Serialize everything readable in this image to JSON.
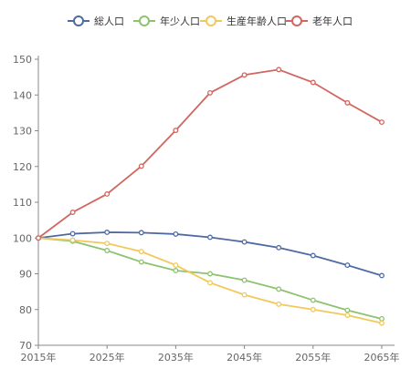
{
  "chart_data": {
    "type": "line",
    "title": "",
    "xlabel": "",
    "ylabel": "",
    "x": [
      2015,
      2020,
      2025,
      2030,
      2035,
      2040,
      2045,
      2050,
      2055,
      2060,
      2065
    ],
    "x_tick_labels": [
      "2015年",
      "2025年",
      "2035年",
      "2045年",
      "2055年",
      "2065年"
    ],
    "x_tick_values": [
      2015,
      2025,
      2035,
      2045,
      2055,
      2065
    ],
    "ylim": [
      70,
      150
    ],
    "y_ticks": [
      70,
      80,
      90,
      100,
      110,
      120,
      130,
      140,
      150
    ],
    "grid": false,
    "legend_position": "top",
    "series": [
      {
        "name": "総人口",
        "color": "#4e6aa3",
        "values": [
          100,
          101.2,
          101.6,
          101.5,
          101.1,
          100.2,
          98.9,
          97.3,
          95.1,
          92.4,
          89.5
        ]
      },
      {
        "name": "年少人口",
        "color": "#8cc36f",
        "values": [
          100,
          99.1,
          96.5,
          93.3,
          90.9,
          90.0,
          88.2,
          85.7,
          82.6,
          79.8,
          77.4
        ]
      },
      {
        "name": "生産年齢人口",
        "color": "#f1c85a",
        "values": [
          100,
          99.4,
          98.5,
          96.2,
          92.4,
          87.5,
          84.1,
          81.5,
          80.0,
          78.4,
          76.2
        ]
      },
      {
        "name": "老年人口",
        "color": "#d0665f",
        "values": [
          100,
          107.2,
          112.3,
          120.1,
          130.1,
          140.6,
          145.6,
          147.1,
          143.5,
          137.8,
          132.4
        ]
      }
    ]
  }
}
